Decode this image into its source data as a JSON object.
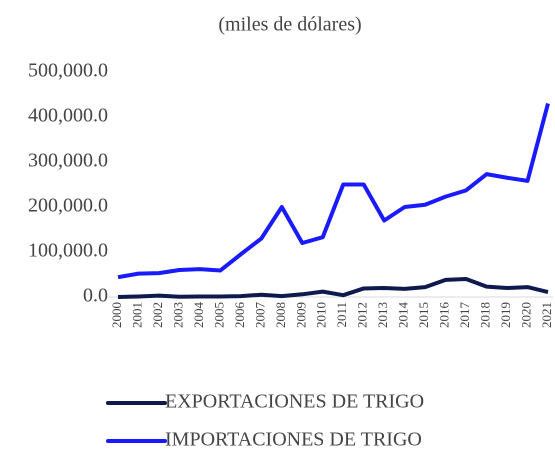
{
  "chart_data": {
    "type": "line",
    "title": "(miles de dólares)",
    "categories": [
      "2000",
      "2001",
      "2002",
      "2003",
      "2004",
      "2005",
      "2006",
      "2007",
      "2008",
      "2009",
      "2010",
      "2011",
      "2012",
      "2013",
      "2014",
      "2015",
      "2016",
      "2017",
      "2018",
      "2019",
      "2020",
      "2021"
    ],
    "series": [
      {
        "name": "EXPORTACIONES DE TRIGO",
        "color": "#0e1a4d",
        "values": [
          0,
          1000,
          3000,
          500,
          1000,
          1000,
          2000,
          5000,
          2000,
          6000,
          12000,
          4000,
          19000,
          20000,
          18000,
          22000,
          38000,
          40000,
          23000,
          20000,
          22000,
          11000
        ]
      },
      {
        "name": "IMPORTACIONES DE TRIGO",
        "color": "#1a1aff",
        "values": [
          44000,
          52000,
          53000,
          60000,
          62000,
          59000,
          95000,
          130000,
          200000,
          120000,
          133000,
          250000,
          250000,
          170000,
          200000,
          205000,
          223000,
          237000,
          273000,
          265000,
          258000,
          430000
        ]
      }
    ],
    "ylim": [
      0,
      500000
    ],
    "yticks": [
      {
        "value": 0,
        "label": "0.0"
      },
      {
        "value": 100000,
        "label": "100,000.0"
      },
      {
        "value": 200000,
        "label": "200,000.0"
      },
      {
        "value": 300000,
        "label": "300,000.0"
      },
      {
        "value": 400000,
        "label": "400,000.0"
      },
      {
        "value": 500000,
        "label": "500,000.0"
      }
    ],
    "legend": "bottom"
  }
}
